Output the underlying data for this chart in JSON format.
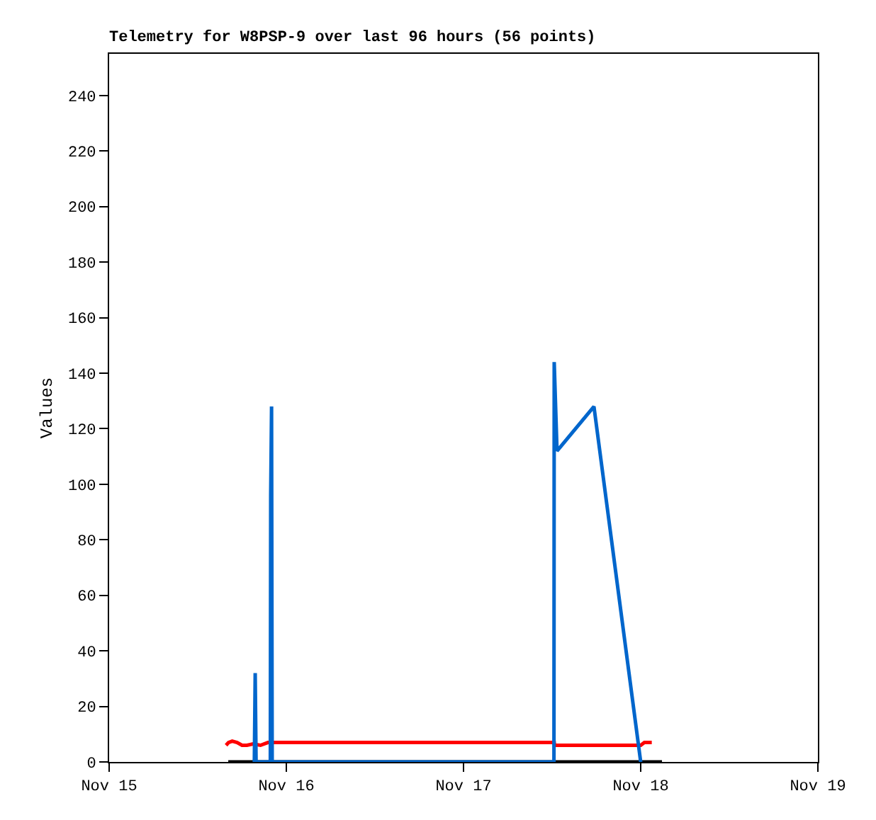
{
  "chart_data": {
    "type": "line",
    "title": "Telemetry for W8PSP-9 over last 96 hours (56 points)",
    "ylabel": "Values",
    "xlim": [
      "--11-15",
      "--11-19"
    ],
    "xticks": [
      {
        "value": "--11-15",
        "label": "Nov 15"
      },
      {
        "value": "--11-16",
        "label": "Nov 16"
      },
      {
        "value": "--11-17",
        "label": "Nov 17"
      },
      {
        "value": "--11-18",
        "label": "Nov 18"
      },
      {
        "value": "--11-19",
        "label": "Nov 19"
      }
    ],
    "ylim": [
      0,
      255
    ],
    "yticks": [
      0,
      20,
      40,
      60,
      80,
      100,
      120,
      140,
      160,
      180,
      200,
      220,
      240
    ],
    "grid": false,
    "marker": "none",
    "line_style": "solid",
    "series": [
      {
        "color": "#000000",
        "x": [
          "--11-15T16:08",
          "--11-18T02:53"
        ],
        "values": [
          0,
          0
        ]
      },
      {
        "color": "#ff0000",
        "x": [
          "--11-15T15:50",
          "--11-15T16:10",
          "--11-15T16:40",
          "--11-15T17:20",
          "--11-15T18:00",
          "--11-15T18:40",
          "--11-15T19:30",
          "--11-15T20:30",
          "--11-15T21:30",
          "--11-15T22:00",
          "--11-17T12:17",
          "--11-17T12:20",
          "--11-18T00:00",
          "--11-18T00:30",
          "--11-18T01:30"
        ],
        "values": [
          6,
          7,
          7.5,
          7,
          6,
          6,
          6.5,
          6,
          7,
          7,
          7,
          6,
          6,
          7,
          7
        ]
      },
      {
        "color": "#0066cc",
        "x": [
          "--11-15T19:40",
          "--11-15T19:47",
          "--11-15T19:54",
          "--11-15T21:50",
          "--11-15T21:53",
          "--11-15T22:00",
          "--11-15T22:05",
          "--11-17T12:15",
          "--11-17T12:17",
          "--11-17T12:40",
          "--11-17T17:40",
          "--11-18T00:00"
        ],
        "values": [
          0,
          32,
          0,
          0,
          96,
          128,
          0,
          0,
          144,
          112,
          128,
          0
        ]
      }
    ]
  }
}
